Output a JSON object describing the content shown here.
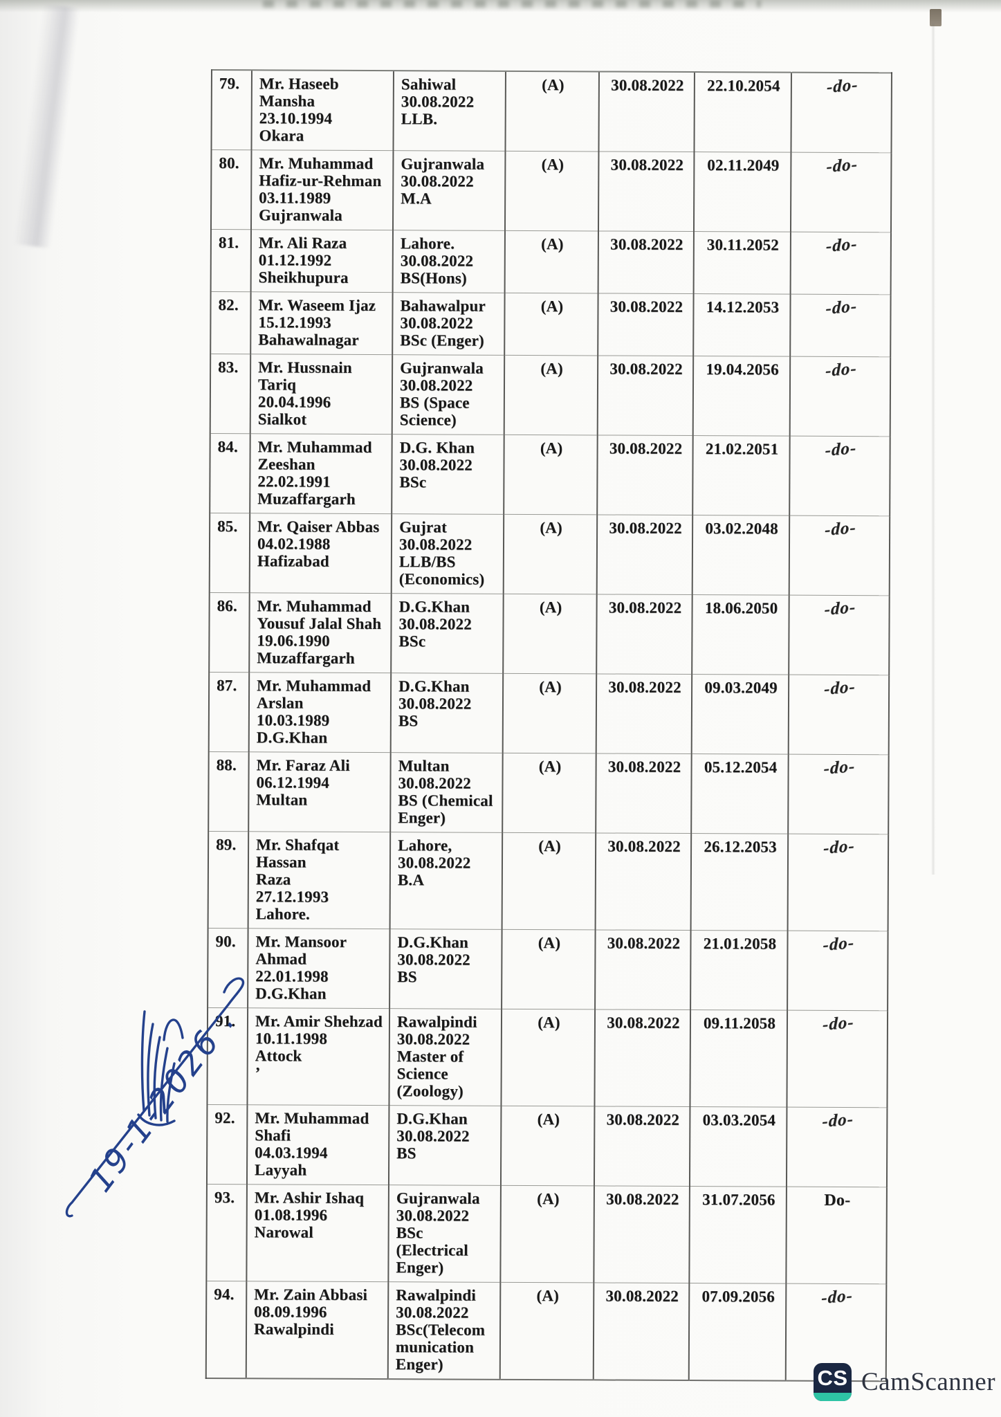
{
  "document": {
    "type": "scanned-personnel-list",
    "status_label": "(A)",
    "rows": [
      {
        "no": "79.",
        "name": [
          "Mr. Haseeb",
          "Mansha",
          "23.10.1994",
          "Okara"
        ],
        "qualification": [
          "Sahiwal",
          "30.08.2022",
          "LLB."
        ],
        "status": "(A)",
        "appointment_date": "30.08.2022",
        "retirement_date": "22.10.2054",
        "remark": "-do-",
        "remark_style": "hand"
      },
      {
        "no": "80.",
        "name": [
          "Mr. Muhammad",
          "Hafiz-ur-Rehman",
          "03.11.1989",
          "Gujranwala"
        ],
        "qualification": [
          "Gujranwala",
          "30.08.2022",
          "M.A"
        ],
        "status": "(A)",
        "appointment_date": "30.08.2022",
        "retirement_date": "02.11.2049",
        "remark": "-do-",
        "remark_style": "hand"
      },
      {
        "no": "81.",
        "name": [
          "Mr. Ali Raza",
          "01.12.1992",
          "Sheikhupura"
        ],
        "qualification": [
          "Lahore.",
          "30.08.2022",
          "BS(Hons)"
        ],
        "status": "(A)",
        "appointment_date": "30.08.2022",
        "retirement_date": "30.11.2052",
        "remark": "-do-",
        "remark_style": "hand"
      },
      {
        "no": "82.",
        "name": [
          "Mr. Waseem Ijaz",
          "15.12.1993",
          "Bahawalnagar"
        ],
        "qualification": [
          "Bahawalpur",
          "30.08.2022",
          "BSc (Enger)"
        ],
        "status": "(A)",
        "appointment_date": "30.08.2022",
        "retirement_date": "14.12.2053",
        "remark": "-do-",
        "remark_style": "hand"
      },
      {
        "no": "83.",
        "name": [
          "Mr. Hussnain Tariq",
          "20.04.1996",
          "Sialkot"
        ],
        "qualification": [
          "Gujranwala",
          "30.08.2022",
          "BS (Space",
          "Science)"
        ],
        "status": "(A)",
        "appointment_date": "30.08.2022",
        "retirement_date": "19.04.2056",
        "remark": "-do-",
        "remark_style": "hand"
      },
      {
        "no": "84.",
        "name": [
          "Mr. Muhammad",
          "Zeeshan",
          "22.02.1991",
          "Muzaffargarh"
        ],
        "qualification": [
          "D.G. Khan",
          "30.08.2022",
          "BSc"
        ],
        "status": "(A)",
        "appointment_date": "30.08.2022",
        "retirement_date": "21.02.2051",
        "remark": "-do-",
        "remark_style": "hand"
      },
      {
        "no": "85.",
        "name": [
          "Mr. Qaiser Abbas",
          "04.02.1988",
          "Hafizabad"
        ],
        "qualification": [
          "Gujrat",
          "30.08.2022",
          "LLB/BS",
          "(Economics)"
        ],
        "status": "(A)",
        "appointment_date": "30.08.2022",
        "retirement_date": "03.02.2048",
        "remark": "-do-",
        "remark_style": "hand"
      },
      {
        "no": "86.",
        "name": [
          "Mr. Muhammad",
          "Yousuf Jalal Shah",
          "19.06.1990",
          "Muzaffargarh"
        ],
        "qualification": [
          "D.G.Khan",
          "30.08.2022",
          "BSc"
        ],
        "status": "(A)",
        "appointment_date": "30.08.2022",
        "retirement_date": "18.06.2050",
        "remark": "-do-",
        "remark_style": "hand"
      },
      {
        "no": "87.",
        "name": [
          "Mr. Muhammad",
          "Arslan",
          "10.03.1989",
          "D.G.Khan"
        ],
        "qualification": [
          "D.G.Khan",
          "30.08.2022",
          "BS"
        ],
        "status": "(A)",
        "appointment_date": "30.08.2022",
        "retirement_date": "09.03.2049",
        "remark": "-do-",
        "remark_style": "hand"
      },
      {
        "no": "88.",
        "name": [
          "Mr. Faraz Ali",
          "06.12.1994",
          "Multan"
        ],
        "qualification": [
          "Multan",
          "30.08.2022",
          "BS (Chemical",
          "Enger)"
        ],
        "status": "(A)",
        "appointment_date": "30.08.2022",
        "retirement_date": "05.12.2054",
        "remark": "-do-",
        "remark_style": "hand"
      },
      {
        "no": "89.",
        "name": [
          "Mr. Shafqat Hassan",
          "Raza",
          "27.12.1993",
          "Lahore."
        ],
        "qualification": [
          "Lahore,",
          "30.08.2022",
          "B.A"
        ],
        "status": "(A)",
        "appointment_date": "30.08.2022",
        "retirement_date": "26.12.2053",
        "remark": "-do-",
        "remark_style": "hand"
      },
      {
        "no": "90.",
        "name": [
          "Mr. Mansoor",
          "Ahmad",
          "22.01.1998",
          "D.G.Khan"
        ],
        "qualification": [
          "D.G.Khan",
          "30.08.2022",
          "BS"
        ],
        "status": "(A)",
        "appointment_date": "30.08.2022",
        "retirement_date": "21.01.2058",
        "remark": "-do-",
        "remark_style": "hand"
      },
      {
        "no": "91.",
        "name": [
          "Mr. Amir Shehzad",
          "10.11.1998",
          "Attock",
          "’"
        ],
        "qualification": [
          "Rawalpindi",
          "30.08.2022",
          "Master of",
          "Science",
          "(Zoology)"
        ],
        "status": "(A)",
        "appointment_date": "30.08.2022",
        "retirement_date": "09.11.2058",
        "remark": "-do-",
        "remark_style": "hand"
      },
      {
        "no": "92.",
        "name": [
          "Mr. Muhammad",
          "Shafi",
          "04.03.1994",
          "Layyah"
        ],
        "qualification": [
          "D.G.Khan",
          "30.08.2022",
          "BS"
        ],
        "status": "(A)",
        "appointment_date": "30.08.2022",
        "retirement_date": "03.03.2054",
        "remark": "-do-",
        "remark_style": "hand"
      },
      {
        "no": "93.",
        "name": [
          "Mr. Ashir Ishaq",
          "01.08.1996",
          "Narowal"
        ],
        "qualification": [
          "Gujranwala",
          "30.08.2022",
          "BSc (Electrical",
          "Enger)"
        ],
        "status": "(A)",
        "appointment_date": "30.08.2022",
        "retirement_date": "31.07.2056",
        "remark": "Do-",
        "remark_style": "typed"
      },
      {
        "no": "94.",
        "name": [
          "Mr. Zain Abbasi",
          "08.09.1996",
          "Rawalpindi"
        ],
        "qualification": [
          "Rawalpindi",
          "30.08.2022",
          "BSc(Telecom",
          "munication",
          "Enger)"
        ],
        "status": "(A)",
        "appointment_date": "30.08.2022",
        "retirement_date": "07.09.2056",
        "remark": "-do-",
        "remark_style": "hand"
      }
    ]
  },
  "annotations": {
    "handwritten_date": "19-1-2026 ."
  },
  "footer": {
    "logo_text": "CS",
    "brand": "CamScanner"
  },
  "colors": {
    "ink": "#1b1b1b",
    "handwriting_blue": "#24418c",
    "logo_navy": "#1a2742",
    "logo_teal": "#2ec4a5",
    "brand_text": "#2e3340"
  }
}
